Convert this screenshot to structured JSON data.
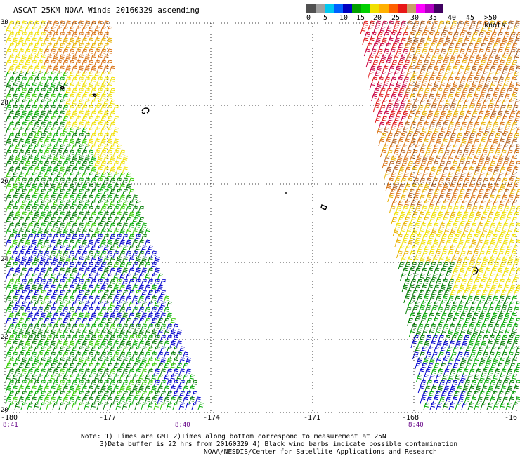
{
  "title": "ASCAT 25KM NOAA Winds 20160329 ascending",
  "legend": {
    "colors": [
      "#505050",
      "#a0a0a0",
      "#00c8f0",
      "#0060ff",
      "#0000c0",
      "#00a000",
      "#00d000",
      "#f0e000",
      "#ffb000",
      "#ff6000",
      "#e81818",
      "#c8a068",
      "#ff00ff",
      "#b000c0",
      "#400060"
    ],
    "labels": [
      "0",
      "5",
      "10",
      "15",
      "20",
      "25",
      "30",
      "35",
      "40",
      "45",
      ">50 knots"
    ]
  },
  "latitude_labels": [
    "30",
    "28",
    "26",
    "24",
    "22",
    "20"
  ],
  "longitude_labels": [
    "-180",
    "-177",
    "-174",
    "-171",
    "-168",
    "-16"
  ],
  "time_labels": [
    "8:41",
    "8:40",
    "8:40"
  ],
  "notes": [
    "Note: 1) Times are GMT 2)Times along bottom correspond to measurement at 25N",
    "3)Data buffer is 22 hrs from 20160329 4) Black wind barbs indicate possible contamination",
    "NOAA/NESDIS/Center for Satellite Applications and Research"
  ],
  "barb_colors": {
    "blue": "#0000cc",
    "dark_green": "#007a00",
    "green": "#00aa00",
    "light_green": "#33cc00",
    "yellow": "#f0e000",
    "gold": "#e8b000",
    "orange": "#d87010",
    "brown": "#b06020",
    "red": "#e01818",
    "crimson": "#c80040"
  }
}
